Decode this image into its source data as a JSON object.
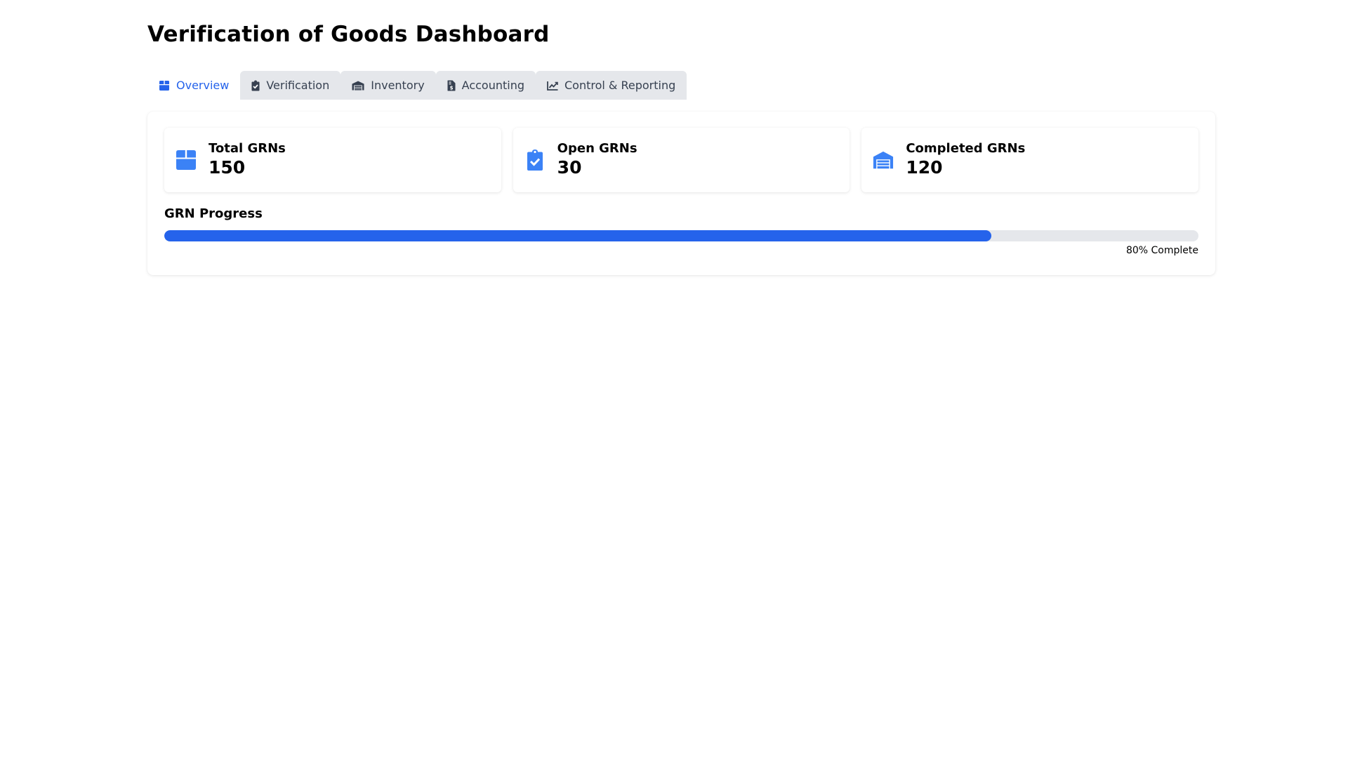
{
  "page": {
    "title": "Verification of Goods Dashboard"
  },
  "tabs": [
    {
      "label": "Overview",
      "icon": "box-icon",
      "active": true
    },
    {
      "label": "Verification",
      "icon": "clipboard-check-icon",
      "active": false
    },
    {
      "label": "Inventory",
      "icon": "warehouse-icon",
      "active": false
    },
    {
      "label": "Accounting",
      "icon": "file-invoice-icon",
      "active": false
    },
    {
      "label": "Control & Reporting",
      "icon": "line-chart-icon",
      "active": false
    }
  ],
  "stats": [
    {
      "label": "Total GRNs",
      "value": "150",
      "icon": "box-icon"
    },
    {
      "label": "Open GRNs",
      "value": "30",
      "icon": "clipboard-check-icon"
    },
    {
      "label": "Completed GRNs",
      "value": "120",
      "icon": "warehouse-icon"
    }
  ],
  "progress": {
    "title": "GRN Progress",
    "percent": 80,
    "text": "80% Complete"
  },
  "colors": {
    "accent": "#2563eb",
    "tab_bg": "#e5e7eb",
    "track": "#e5e7eb"
  }
}
